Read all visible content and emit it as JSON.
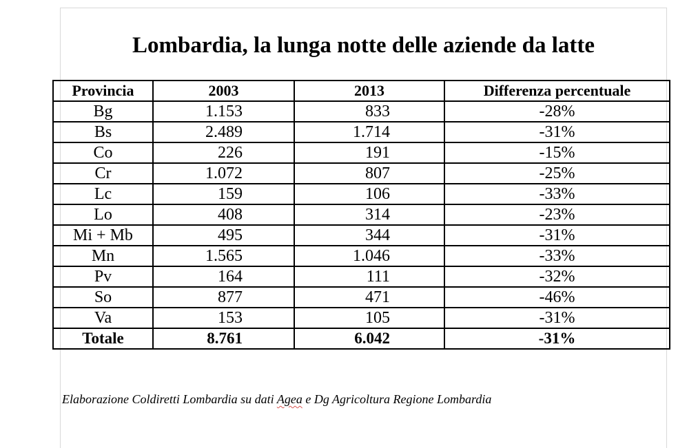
{
  "title": "Lombardia, la lunga notte delle aziende da latte",
  "table": {
    "headers": [
      "Provincia",
      "2003",
      "2013",
      "Differenza percentuale"
    ],
    "rows": [
      {
        "provincia": "Bg",
        "y2003": "1.153",
        "y2013": "833",
        "diff": "-28%"
      },
      {
        "provincia": "Bs",
        "y2003": "2.489",
        "y2013": "1.714",
        "diff": "-31%"
      },
      {
        "provincia": "Co",
        "y2003": "226",
        "y2013": "191",
        "diff": "-15%"
      },
      {
        "provincia": "Cr",
        "y2003": "1.072",
        "y2013": "807",
        "diff": "-25%"
      },
      {
        "provincia": "Lc",
        "y2003": "159",
        "y2013": "106",
        "diff": "-33%"
      },
      {
        "provincia": "Lo",
        "y2003": "408",
        "y2013": "314",
        "diff": "-23%"
      },
      {
        "provincia": "Mi + Mb",
        "y2003": "495",
        "y2013": "344",
        "diff": "-31%"
      },
      {
        "provincia": "Mn",
        "y2003": "1.565",
        "y2013": "1.046",
        "diff": "-33%"
      },
      {
        "provincia": "Pv",
        "y2003": "164",
        "y2013": "111",
        "diff": "-32%"
      },
      {
        "provincia": "So",
        "y2003": "877",
        "y2013": "471",
        "diff": "-46%"
      },
      {
        "provincia": "Va",
        "y2003": "153",
        "y2013": "105",
        "diff": "-31%"
      }
    ],
    "total": {
      "provincia": "Totale",
      "y2003": "8.761",
      "y2013": "6.042",
      "diff": "-31%"
    }
  },
  "source": {
    "before": "Elaborazione Coldiretti Lombardia su dati ",
    "flagged_word": "Agea",
    "after": " e Dg Agricoltura Regione Lombardia"
  },
  "colors": {
    "spellcheck_underline": "#d9534f",
    "page_border": "#d8d8d8"
  }
}
